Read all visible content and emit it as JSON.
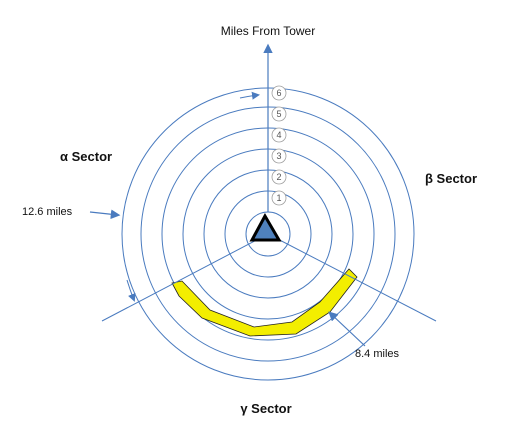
{
  "diagram": {
    "axis_title": "Miles From Tower",
    "ring_labels": [
      "1",
      "2",
      "3",
      "4",
      "5",
      "6"
    ],
    "sectors": {
      "alpha": "α Sector",
      "beta": "β Sector",
      "gamma": "γ Sector"
    },
    "annotations": {
      "outer_distance": "12.6 miles",
      "band_distance": "8.4 miles"
    },
    "colors": {
      "ring_stroke": "#4a7bbf",
      "band_fill": "#f3ee00",
      "tower_fill": "#4f81bd",
      "tower_stroke": "#000000",
      "badge_stroke": "#9e9e9e"
    },
    "icons": [
      "tower-triangle-icon"
    ]
  }
}
